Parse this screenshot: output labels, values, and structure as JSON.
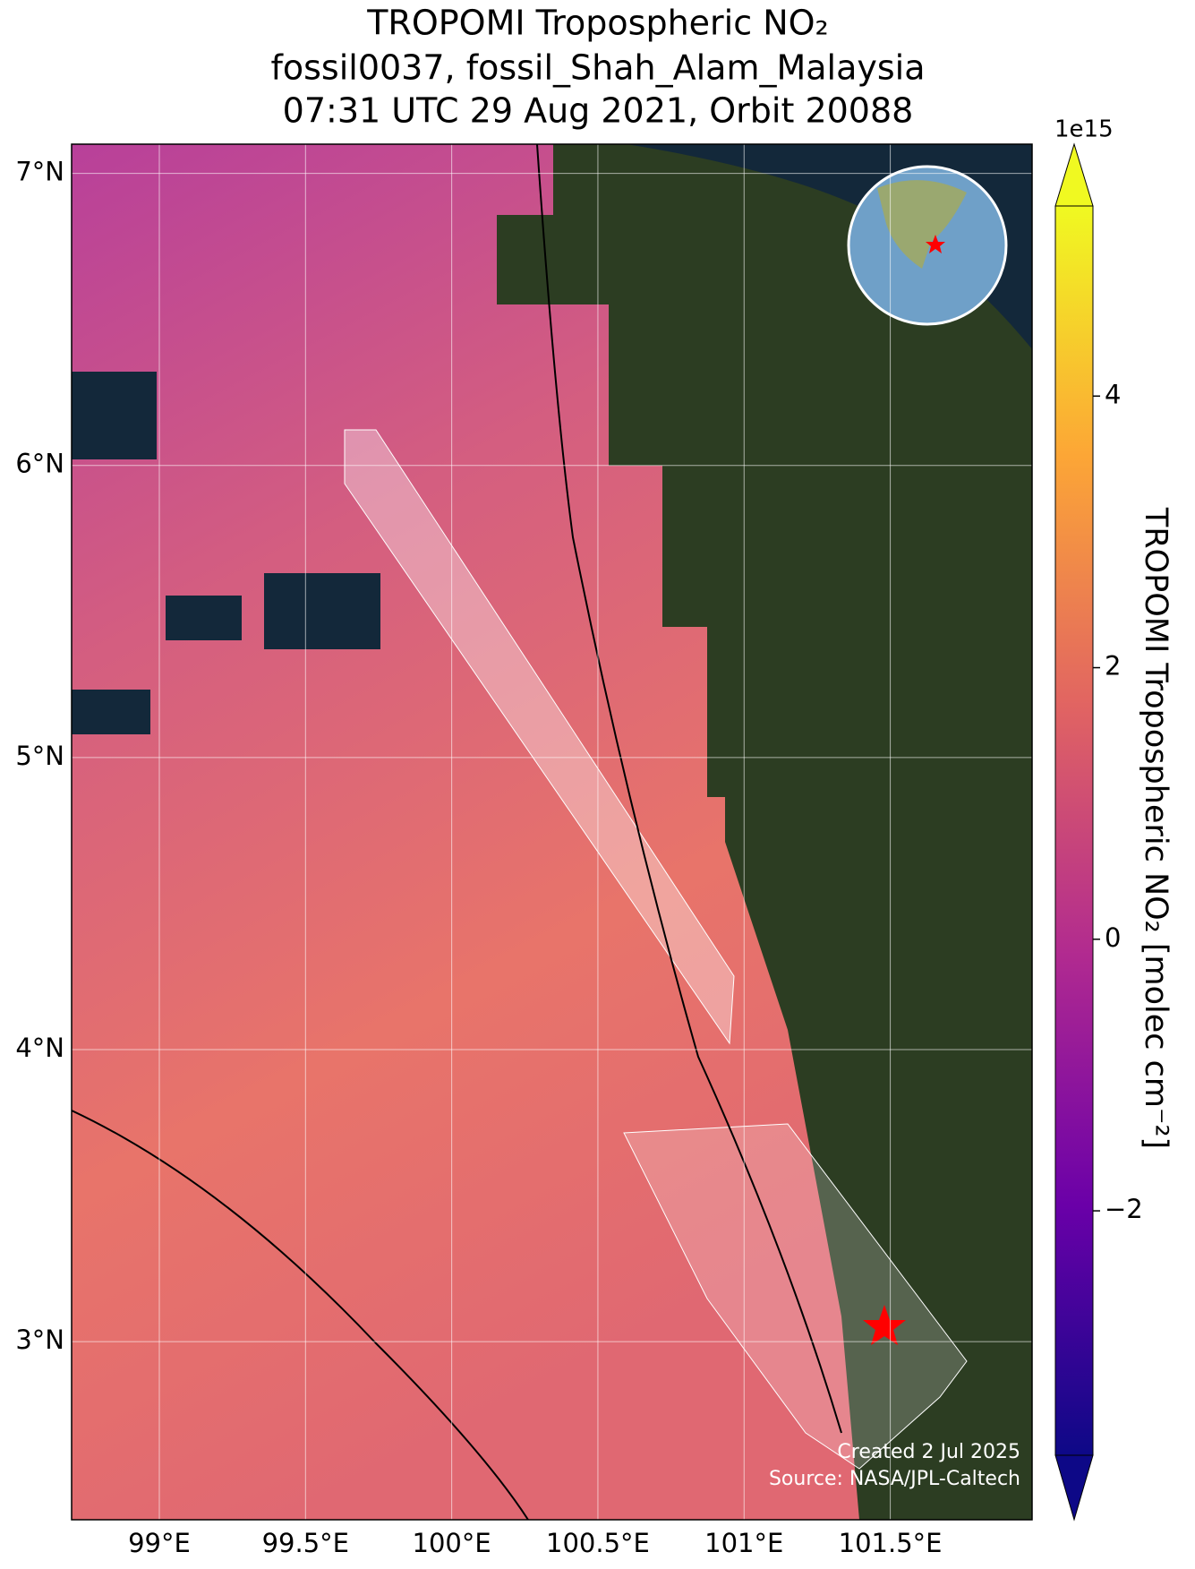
{
  "chart_data": {
    "type": "map",
    "title": [
      "TROPOMI Tropospheric NO₂",
      "fossil0037, fossil_Shah_Alam_Malaysia",
      "07:31 UTC 29 Aug 2021, Orbit 20088"
    ],
    "xlim": [
      98.7,
      101.985
    ],
    "ylim": [
      2.39,
      7.1
    ],
    "xticks": [
      {
        "value": 99,
        "label": "99°E"
      },
      {
        "value": 99.5,
        "label": "99.5°E"
      },
      {
        "value": 100,
        "label": "100°E"
      },
      {
        "value": 100.5,
        "label": "100.5°E"
      },
      {
        "value": 101,
        "label": "101°E"
      },
      {
        "value": 101.5,
        "label": "101.5°E"
      }
    ],
    "yticks": [
      {
        "value": 3,
        "label": "3°N"
      },
      {
        "value": 4,
        "label": "4°N"
      },
      {
        "value": 5,
        "label": "5°N"
      },
      {
        "value": 6,
        "label": "6°N"
      },
      {
        "value": 7,
        "label": "7°N"
      }
    ],
    "grid": true,
    "colorbar": {
      "label": "TROPOMI Tropospheric NO₂ [molec cm⁻²]",
      "offset": "1e15",
      "colormap": "plasma",
      "clim": [
        -3.8,
        5.4
      ],
      "ticks": [
        {
          "value": -2,
          "label": "−2"
        },
        0,
        2,
        4
      ]
    },
    "credits": [
      "Created 2 Jul 2025",
      "Source: NASA/JPL-Caltech"
    ]
  }
}
